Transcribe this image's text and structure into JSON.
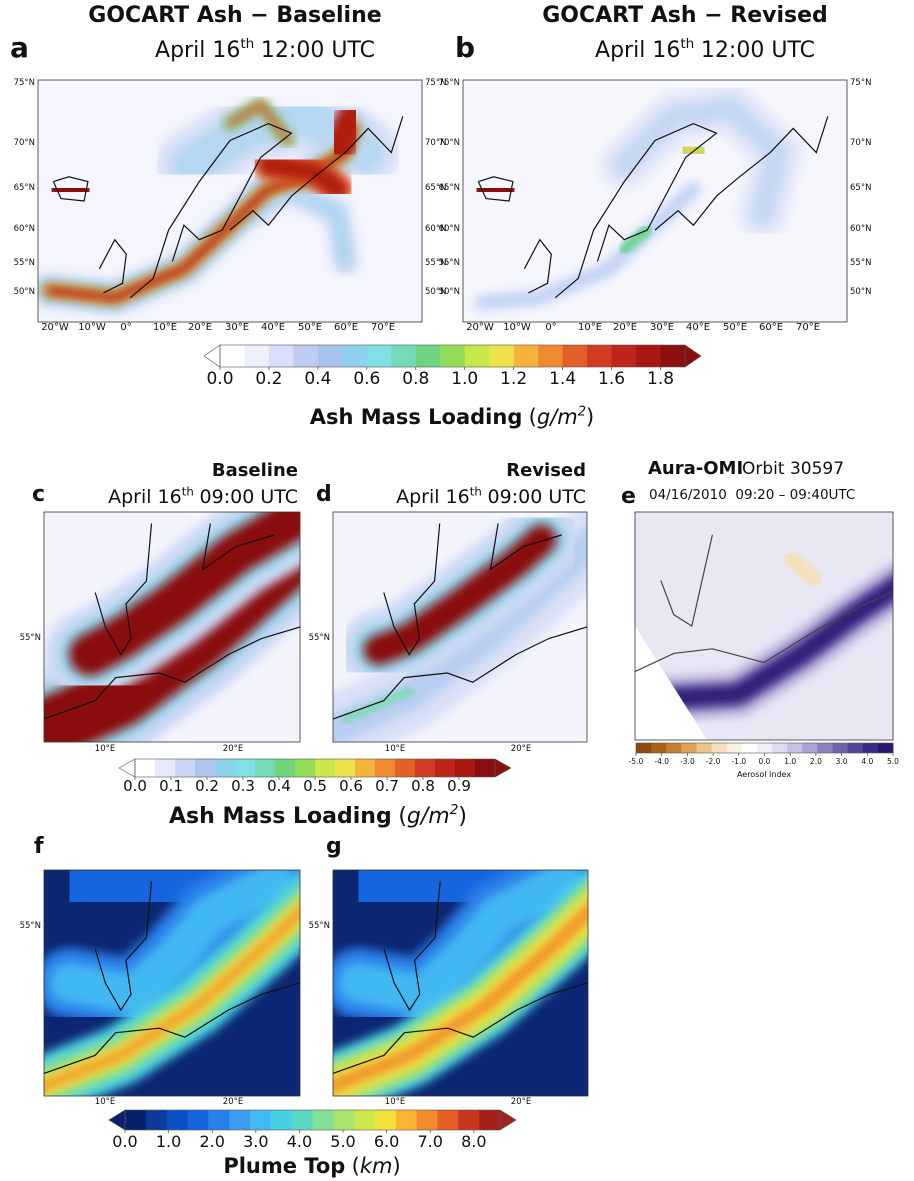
{
  "panels": [
    {
      "letter": "a",
      "title": "GOCART Ash − Baseline",
      "date": "April 16",
      "date_sup": "th",
      "time": "12:00 UTC",
      "lat_labels": [
        "75°N",
        "70°N",
        "65°N",
        "60°N",
        "55°N",
        "50°N"
      ],
      "lon_labels": [
        "20°W",
        "10°W",
        "0°",
        "10°E",
        "20°E",
        "30°E",
        "40°E",
        "50°E",
        "60°E",
        "70°E"
      ]
    },
    {
      "letter": "b",
      "title": "GOCART Ash − Revised",
      "date": "April 16",
      "date_sup": "th",
      "time": "12:00 UTC",
      "lat_labels": [
        "75°N",
        "70°N",
        "65°N",
        "60°N",
        "55°N",
        "50°N"
      ],
      "lon_labels": [
        "20°W",
        "10°W",
        "0°",
        "10°E",
        "20°E",
        "30°E",
        "40°E",
        "50°E",
        "60°E",
        "70°E"
      ]
    },
    {
      "letter": "c",
      "title": "Baseline",
      "date": "April 16",
      "date_sup": "th",
      "time": "09:00 UTC",
      "lat_labels": [
        "55°N"
      ],
      "lon_labels": [
        "10°E",
        "20°E"
      ]
    },
    {
      "letter": "d",
      "title": "Revised",
      "date": "April 16",
      "date_sup": "th",
      "time": "09:00 UTC",
      "lat_labels": [
        "55°N"
      ],
      "lon_labels": [
        "10°E",
        "20°E"
      ]
    },
    {
      "letter": "e",
      "title": "Aura-OMI",
      "subtitle": "Orbit 30597",
      "time": "04/16/2010  09:20 – 09:40UTC"
    },
    {
      "letter": "f",
      "lat_labels": [
        "55°N"
      ],
      "lon_labels": [
        "10°E",
        "20°E"
      ]
    },
    {
      "letter": "g",
      "lat_labels": [
        "55°N"
      ],
      "lon_labels": [
        "10°E",
        "20°E"
      ]
    }
  ],
  "colorbars": [
    {
      "label": "Ash Mass Loading",
      "unit_parts": [
        "(",
        "g/m",
        "2",
        ")"
      ],
      "lim": [
        0,
        1.9
      ],
      "ticks": [
        {
          "value": 0,
          "label": "0.0"
        },
        {
          "value": 0.2,
          "label": "0.2"
        },
        {
          "value": 0.4,
          "label": "0.4"
        },
        {
          "value": 0.6,
          "label": "0.6"
        },
        {
          "value": 0.8,
          "label": "0.8"
        },
        {
          "value": 1.0,
          "label": "1.0"
        },
        {
          "value": 1.2,
          "label": "1.2"
        },
        {
          "value": 1.4,
          "label": "1.4"
        },
        {
          "value": 1.6,
          "label": "1.6"
        },
        {
          "value": 1.8,
          "label": "1.8"
        }
      ],
      "colors": [
        "#ffffff",
        "#eef0fb",
        "#d9defa",
        "#c0cbf3",
        "#a7c3ee",
        "#8fd0f0",
        "#7fe0e6",
        "#74dbb8",
        "#6fd37e",
        "#93dc5a",
        "#c8e84a",
        "#eee24a",
        "#f4b43c",
        "#ef8a30",
        "#e4602a",
        "#d43a22",
        "#c02418",
        "#a81812",
        "#8a1010"
      ]
    },
    {
      "label": "Ash Mass Loading",
      "unit_parts": [
        "(",
        "g/m",
        "2",
        ")"
      ],
      "lim": [
        0,
        1.0
      ],
      "ticks": [
        {
          "value": 0,
          "label": "0.0"
        },
        {
          "value": 0.1,
          "label": "0.1"
        },
        {
          "value": 0.2,
          "label": "0.2"
        },
        {
          "value": 0.3,
          "label": "0.3"
        },
        {
          "value": 0.4,
          "label": "0.4"
        },
        {
          "value": 0.5,
          "label": "0.5"
        },
        {
          "value": 0.6,
          "label": "0.6"
        },
        {
          "value": 0.7,
          "label": "0.7"
        },
        {
          "value": 0.8,
          "label": "0.8"
        },
        {
          "value": 0.9,
          "label": "0.9"
        }
      ],
      "colors": [
        "#ffffff",
        "#e6eafa",
        "#ccd5f5",
        "#aec4ee",
        "#8fd0f0",
        "#7fe0e6",
        "#74dbb8",
        "#6fd37e",
        "#93dc5a",
        "#c8e84a",
        "#eee24a",
        "#f4b43c",
        "#ef8a30",
        "#e4602a",
        "#d43a22",
        "#c02418",
        "#a81812",
        "#8a1010"
      ]
    },
    {
      "label": "Aerosol Index",
      "lim": [
        -5,
        5
      ],
      "ticks": [
        {
          "value": -5,
          "label": "-5.0"
        },
        {
          "value": -4,
          "label": "-4.0"
        },
        {
          "value": -3,
          "label": "-3.0"
        },
        {
          "value": -2,
          "label": "-2.0"
        },
        {
          "value": -1,
          "label": "-1.0"
        },
        {
          "value": 0,
          "label": "0.0"
        },
        {
          "value": 1,
          "label": "1.0"
        },
        {
          "value": 2,
          "label": "2.0"
        },
        {
          "value": 3,
          "label": "3.0"
        },
        {
          "value": 4,
          "label": "4.0"
        },
        {
          "value": 5,
          "label": "5.0"
        }
      ],
      "colors": [
        "#8a4a10",
        "#a8621c",
        "#c47f34",
        "#dba25a",
        "#ecc488",
        "#f6e0bc",
        "#fbf1e2",
        "#ffffff",
        "#f1effa",
        "#dedbf0",
        "#c6c1e4",
        "#aaa2d4",
        "#8c82c2",
        "#6f62ae",
        "#55449a",
        "#3d2a86",
        "#2a1670"
      ]
    },
    {
      "label": "Plume Top",
      "unit_parts": [
        "(",
        "km",
        ")"
      ],
      "lim": [
        0,
        8.6
      ],
      "ticks": [
        {
          "value": 0,
          "label": "0.0"
        },
        {
          "value": 1,
          "label": "1.0"
        },
        {
          "value": 2,
          "label": "2.0"
        },
        {
          "value": 3,
          "label": "3.0"
        },
        {
          "value": 4,
          "label": "4.0"
        },
        {
          "value": 5,
          "label": "5.0"
        },
        {
          "value": 6,
          "label": "6.0"
        },
        {
          "value": 7,
          "label": "7.0"
        },
        {
          "value": 8,
          "label": "8.0"
        }
      ],
      "colors": [
        "#08216b",
        "#0a3a9c",
        "#0b52c4",
        "#1565de",
        "#2a80ea",
        "#3a9df2",
        "#43b8f2",
        "#48cfe6",
        "#5ad8c4",
        "#7fe09a",
        "#a8e46f",
        "#d0e850",
        "#f3e23c",
        "#f7b733",
        "#f08a2b",
        "#e45d24",
        "#cc3520",
        "#a5201a"
      ]
    }
  ]
}
